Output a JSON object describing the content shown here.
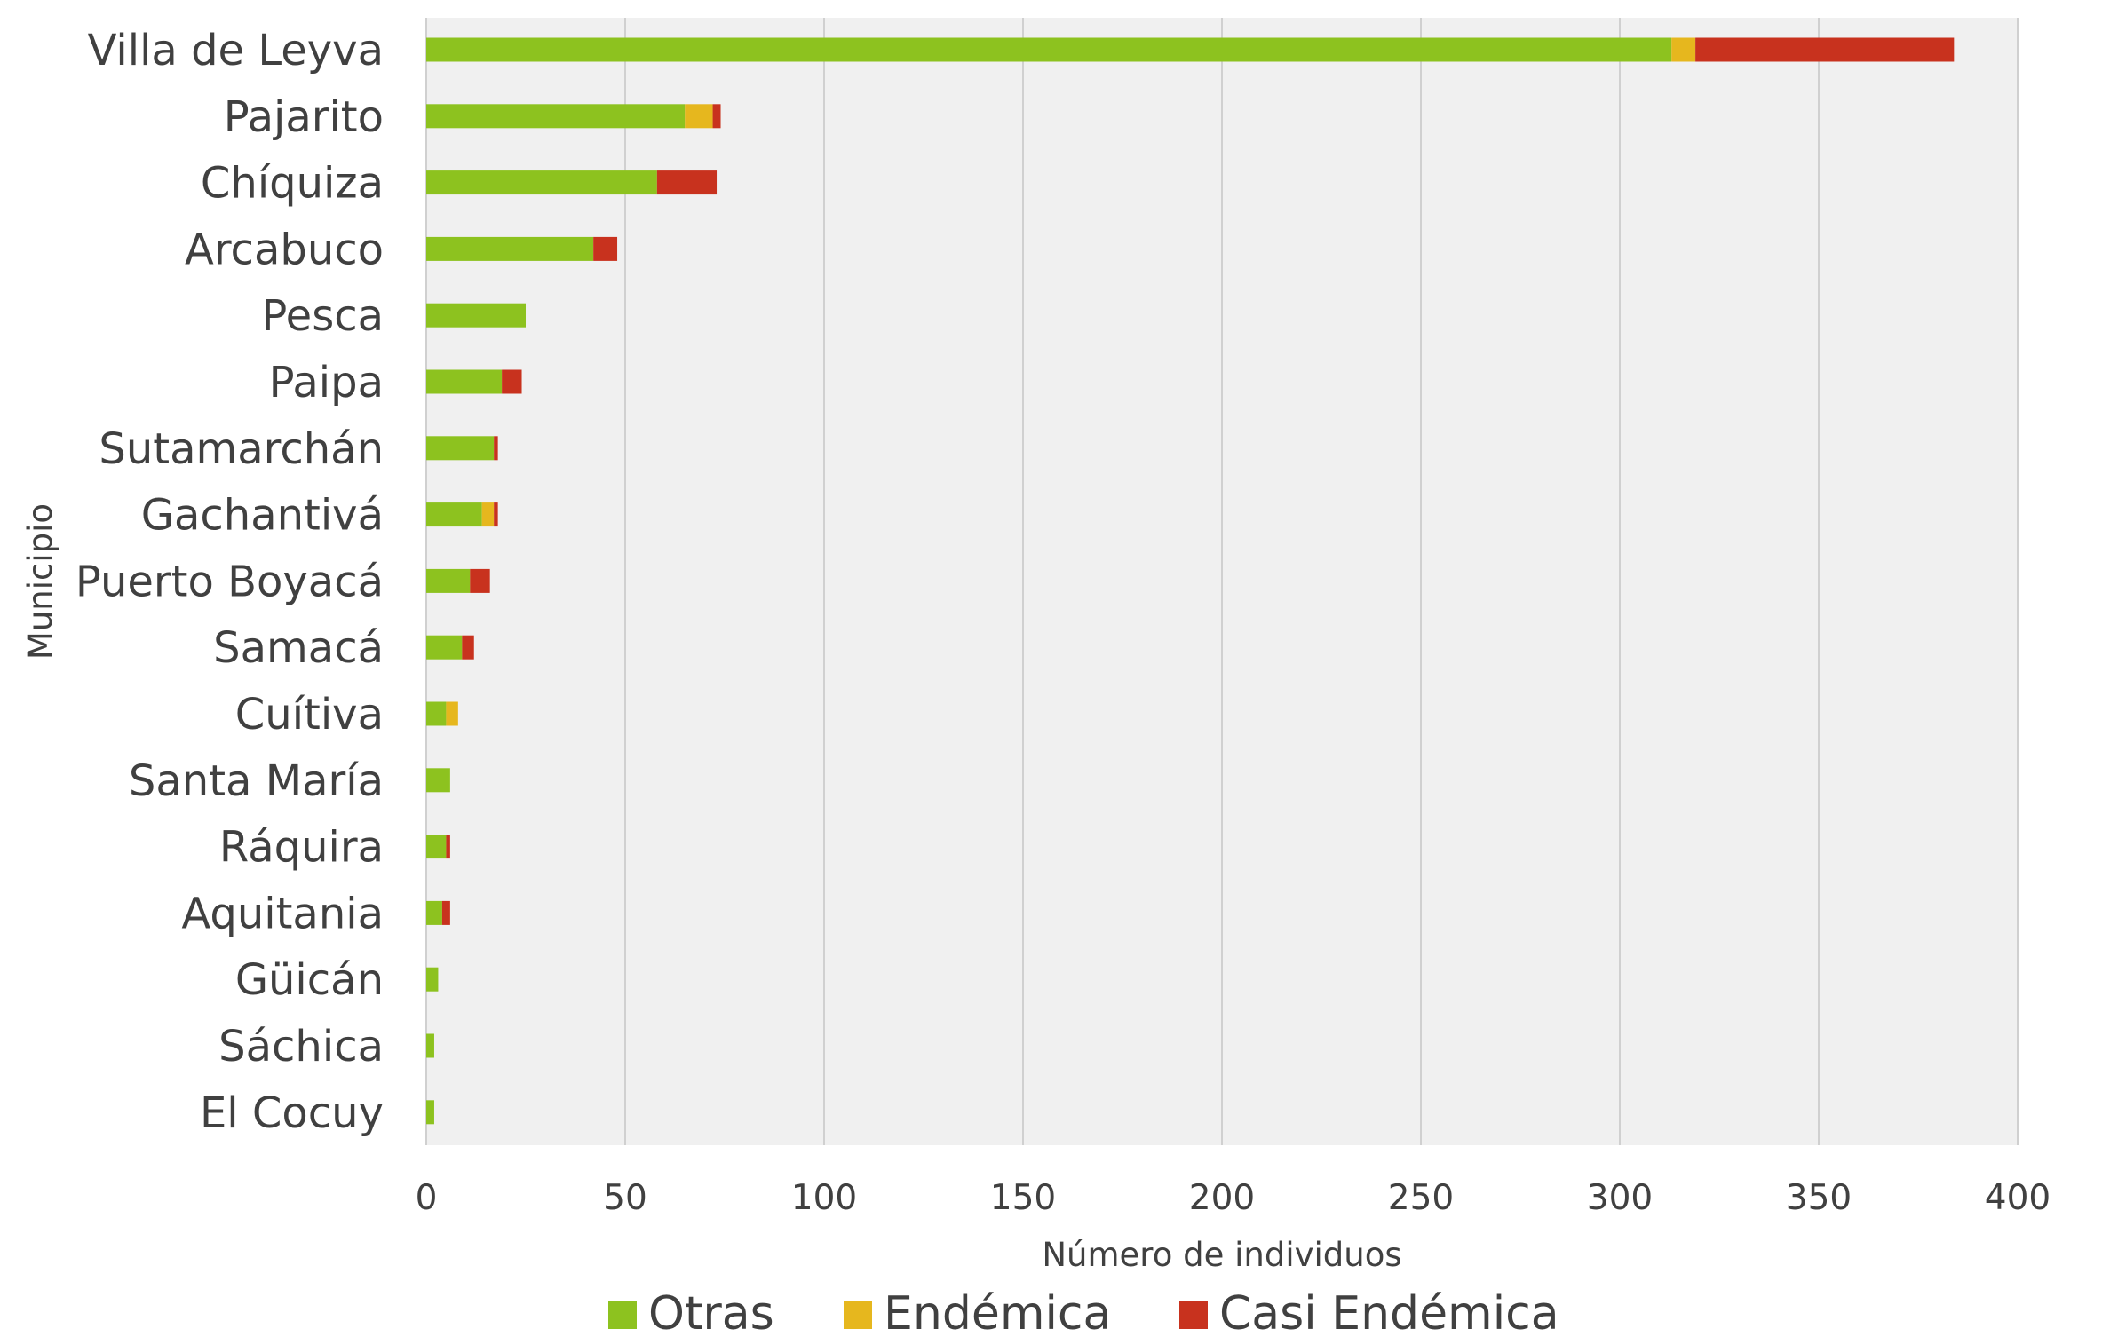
{
  "chart_data": {
    "type": "bar",
    "orientation": "horizontal",
    "stacked": true,
    "categories": [
      "Villa de Leyva",
      "Pajarito",
      "Chíquiza",
      "Arcabuco",
      "Pesca",
      "Paipa",
      "Sutamarchán",
      "Gachantivá",
      "Puerto Boyacá",
      "Samacá",
      "Cuítiva",
      "Santa María",
      "Ráquira",
      "Aquitania",
      "Güicán",
      "Sáchica",
      "El Cocuy"
    ],
    "series": [
      {
        "name": "Otras",
        "color": "#8dc21f",
        "values": [
          313,
          65,
          58,
          42,
          25,
          19,
          17,
          14,
          11,
          9,
          5,
          6,
          5,
          4,
          3,
          2,
          2
        ]
      },
      {
        "name": "Endémica",
        "color": "#e6b71e",
        "values": [
          6,
          7,
          0,
          0,
          0,
          0,
          0,
          3,
          0,
          0,
          3,
          0,
          0,
          0,
          0,
          0,
          0
        ]
      },
      {
        "name": "Casi Endémica",
        "color": "#c8321e",
        "values": [
          65,
          2,
          15,
          6,
          0,
          5,
          1,
          1,
          5,
          3,
          0,
          0,
          1,
          2,
          0,
          0,
          0
        ]
      }
    ],
    "xlabel": "Número de individuos",
    "ylabel": "Municipio",
    "xlim": [
      0,
      400
    ],
    "xticks": [
      "0",
      "50",
      "100",
      "150",
      "200",
      "250",
      "300",
      "350",
      "400"
    ],
    "grid": true,
    "legend": "bottom",
    "plot_background": "#f0f0f0"
  }
}
